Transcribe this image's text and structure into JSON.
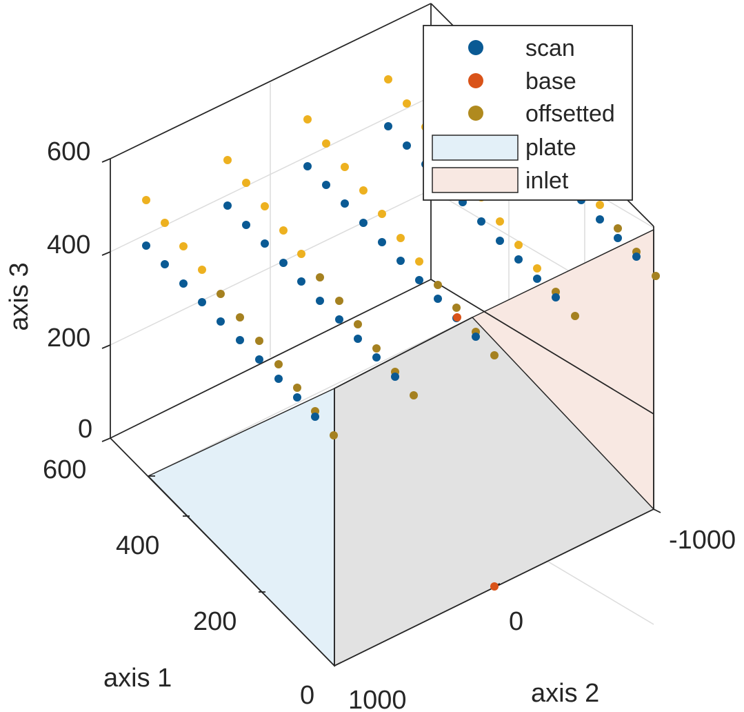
{
  "chart_data": {
    "type": "scatter",
    "projection": "3d-oblique",
    "xlabel": "axis 1",
    "ylabel": "axis 2",
    "zlabel": "axis 3",
    "xlim": [
      0,
      600
    ],
    "ylim": [
      -1000,
      1000
    ],
    "zlim": [
      0,
      600
    ],
    "x_ticks": [
      "0",
      "200",
      "400",
      "600"
    ],
    "y_ticks": [
      "1000",
      "0",
      "-1000"
    ],
    "z_ticks": [
      "0",
      "200",
      "400",
      "600"
    ],
    "grid": true,
    "legend_position": "top-right",
    "colors": {
      "scan": "#0a5a94",
      "base": "#d95319",
      "offsetted": "#edb120",
      "offsetted_dark": "#a58120",
      "plate": "#e3f0f8",
      "inlet": "#f8e8e2",
      "axis": "#262626",
      "grid": "#dcdcdc"
    },
    "legend": [
      {
        "label": "scan",
        "kind": "marker",
        "color": "#0a5a94"
      },
      {
        "label": "base",
        "kind": "marker",
        "color": "#d95319"
      },
      {
        "label": "offsetted",
        "kind": "marker",
        "color": "#b08a1e"
      },
      {
        "label": "plate",
        "kind": "patch",
        "color": "#e3f0f8"
      },
      {
        "label": "inlet",
        "kind": "patch",
        "color": "#f8e8e2"
      }
    ],
    "series": [
      {
        "name": "scan",
        "color": "#0a5a94",
        "points": [
          [
            50,
            1000,
            0
          ],
          [
            150,
            1000,
            0
          ],
          [
            250,
            1000,
            0
          ],
          [
            350,
            1000,
            0
          ],
          [
            450,
            1000,
            0
          ],
          [
            550,
            1000,
            0
          ],
          [
            50,
            500,
            0
          ],
          [
            150,
            500,
            0
          ],
          [
            250,
            500,
            0
          ],
          [
            350,
            500,
            0
          ],
          [
            450,
            500,
            0
          ],
          [
            550,
            500,
            0
          ],
          [
            50,
            0,
            0
          ],
          [
            150,
            0,
            0
          ],
          [
            250,
            0,
            0
          ],
          [
            350,
            0,
            0
          ],
          [
            450,
            0,
            0
          ],
          [
            550,
            0,
            0
          ],
          [
            50,
            -500,
            0
          ],
          [
            150,
            -500,
            0
          ],
          [
            250,
            -500,
            0
          ],
          [
            350,
            -500,
            0
          ],
          [
            450,
            -500,
            0
          ],
          [
            550,
            -500,
            0
          ],
          [
            50,
            -1000,
            0
          ],
          [
            150,
            -1000,
            0
          ],
          [
            250,
            -1000,
            0
          ],
          [
            350,
            -1000,
            0
          ],
          [
            450,
            -1000,
            0
          ],
          [
            550,
            -1000,
            0
          ]
        ]
      },
      {
        "name": "base",
        "color": "#d95319",
        "points": [
          [
            0,
            0,
            0
          ],
          [
            0,
            -1000,
            0
          ]
        ]
      },
      {
        "name": "offsetted",
        "color": "#edb120",
        "points": [
          [
            50,
            1000,
            0
          ],
          [
            150,
            1000,
            0
          ],
          [
            250,
            1000,
            0
          ],
          [
            350,
            1000,
            0
          ],
          [
            450,
            1000,
            0
          ],
          [
            550,
            1000,
            0
          ],
          [
            50,
            500,
            0
          ],
          [
            150,
            500,
            0
          ],
          [
            250,
            500,
            0
          ],
          [
            350,
            500,
            0
          ],
          [
            450,
            500,
            0
          ],
          [
            550,
            500,
            0
          ],
          [
            50,
            0,
            0
          ],
          [
            150,
            0,
            0
          ],
          [
            250,
            0,
            0
          ],
          [
            350,
            0,
            0
          ],
          [
            450,
            0,
            0
          ],
          [
            550,
            0,
            0
          ],
          [
            50,
            -500,
            0
          ],
          [
            150,
            -500,
            0
          ],
          [
            250,
            -500,
            0
          ],
          [
            350,
            -500,
            0
          ],
          [
            450,
            -500,
            0
          ],
          [
            550,
            -500,
            0
          ],
          [
            50,
            -1000,
            0
          ],
          [
            150,
            -1000,
            0
          ],
          [
            250,
            -1000,
            0
          ],
          [
            350,
            -1000,
            0
          ],
          [
            450,
            -1000,
            0
          ],
          [
            550,
            -1000,
            0
          ]
        ]
      }
    ]
  }
}
